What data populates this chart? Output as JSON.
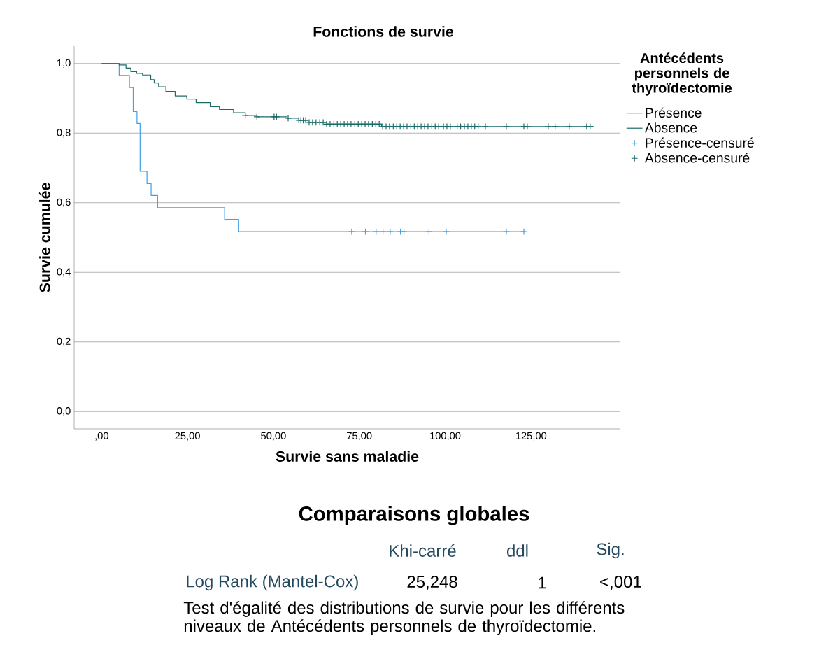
{
  "chart_data": {
    "type": "step",
    "title": "Fonctions de survie",
    "xlabel": "Survie sans maladie",
    "ylabel": "Survie cumulée",
    "legend_title": "Antécédents personnels  de thyroïdectomie",
    "legend": "right",
    "grid": "y",
    "xlim": [
      -8,
      151
    ],
    "ylim": [
      -0.05,
      1.05
    ],
    "xticks": [
      {
        "value": 0,
        "label": ",00"
      },
      {
        "value": 25,
        "label": "25,00"
      },
      {
        "value": 50,
        "label": "50,00"
      },
      {
        "value": 75,
        "label": "75,00"
      },
      {
        "value": 100,
        "label": "100,00"
      },
      {
        "value": 125,
        "label": "125,00"
      }
    ],
    "yticks": [
      {
        "value": 0,
        "label": "0,0"
      },
      {
        "value": 0.2,
        "label": "0,2"
      },
      {
        "value": 0.4,
        "label": "0,4"
      },
      {
        "value": 0.6,
        "label": "0,6"
      },
      {
        "value": 0.8,
        "label": "0,8"
      },
      {
        "value": 1.0,
        "label": "1,0"
      }
    ],
    "series": [
      {
        "name": "Présence",
        "color": "#3ea0e6",
        "x": [
          0,
          5.1,
          8.1,
          9.2,
          10.3,
          11.2,
          13.2,
          14.4,
          16.3,
          35.8,
          39.9,
          123.2
        ],
        "values": [
          1,
          0.966,
          0.931,
          0.862,
          0.828,
          0.69,
          0.655,
          0.621,
          0.586,
          0.552,
          0.517,
          0.517
        ]
      },
      {
        "name": "Absence",
        "color": "#1a6b68",
        "x": [
          0,
          5.1,
          7.1,
          8.5,
          10.2,
          11.9,
          14.3,
          15.3,
          16.6,
          18.7,
          21.4,
          24.8,
          27.5,
          31.6,
          34.3,
          38.4,
          41.8,
          45.2,
          54.0,
          57.4,
          60.1,
          65.5,
          81.5,
          143.2
        ],
        "values": [
          1,
          0.996,
          0.987,
          0.977,
          0.972,
          0.967,
          0.954,
          0.944,
          0.933,
          0.92,
          0.907,
          0.898,
          0.888,
          0.876,
          0.868,
          0.859,
          0.851,
          0.847,
          0.843,
          0.837,
          0.831,
          0.826,
          0.819,
          0.819
        ]
      },
      {
        "name": "Présence-censuré",
        "type": "scatter",
        "marker": "cross",
        "color": "#3ea0e6",
        "x": [
          72.8,
          76.8,
          79.9,
          81.9,
          84.0,
          87.0,
          88.0,
          95.3,
          100.3,
          117.8,
          122.9
        ],
        "values": [
          0.517,
          0.517,
          0.517,
          0.517,
          0.517,
          0.517,
          0.517,
          0.517,
          0.517,
          0.517,
          0.517
        ]
      },
      {
        "name": "Absence-censuré",
        "type": "scatter",
        "marker": "cross",
        "color": "#1a6b68",
        "x": [
          41.8,
          45.2,
          50.2,
          50.9,
          54.3,
          57.4,
          58.0,
          58.7,
          59.4,
          60.4,
          61.4,
          62.4,
          63.5,
          64.5,
          65.5,
          66.5,
          67.6,
          68.6,
          69.6,
          70.6,
          71.6,
          72.6,
          73.7,
          74.7,
          75.7,
          76.7,
          77.7,
          78.8,
          79.8,
          80.8,
          81.8,
          82.8,
          83.8,
          84.9,
          85.9,
          86.9,
          87.9,
          88.9,
          90.0,
          91.0,
          92.0,
          93.0,
          94.0,
          95.0,
          96.1,
          97.1,
          98.1,
          99.5,
          100.5,
          101.5,
          103.5,
          104.5,
          105.6,
          106.6,
          107.6,
          108.6,
          109.6,
          111.7,
          117.8,
          122.9,
          123.9,
          130.0,
          132.0,
          136.1,
          141.2,
          142.2
        ],
        "values": [
          0.851,
          0.847,
          0.847,
          0.847,
          0.843,
          0.837,
          0.837,
          0.837,
          0.837,
          0.831,
          0.831,
          0.831,
          0.831,
          0.831,
          0.826,
          0.826,
          0.826,
          0.826,
          0.826,
          0.826,
          0.826,
          0.826,
          0.826,
          0.826,
          0.826,
          0.826,
          0.826,
          0.826,
          0.826,
          0.826,
          0.819,
          0.819,
          0.819,
          0.819,
          0.819,
          0.819,
          0.819,
          0.819,
          0.819,
          0.819,
          0.819,
          0.819,
          0.819,
          0.819,
          0.819,
          0.819,
          0.819,
          0.819,
          0.819,
          0.819,
          0.819,
          0.819,
          0.819,
          0.819,
          0.819,
          0.819,
          0.819,
          0.819,
          0.819,
          0.819,
          0.819,
          0.819,
          0.819,
          0.819,
          0.819,
          0.819
        ]
      }
    ],
    "annotations": [
      "Comparaisons globales",
      "Khi-carré",
      "ddl",
      "Sig.",
      "Log Rank (Mantel-Cox)",
      "25,248",
      "1",
      "<,001",
      "Test d'égalité des distributions de survie pour les différents niveaux de Antécédents personnels  de thyroïdectomie."
    ]
  }
}
